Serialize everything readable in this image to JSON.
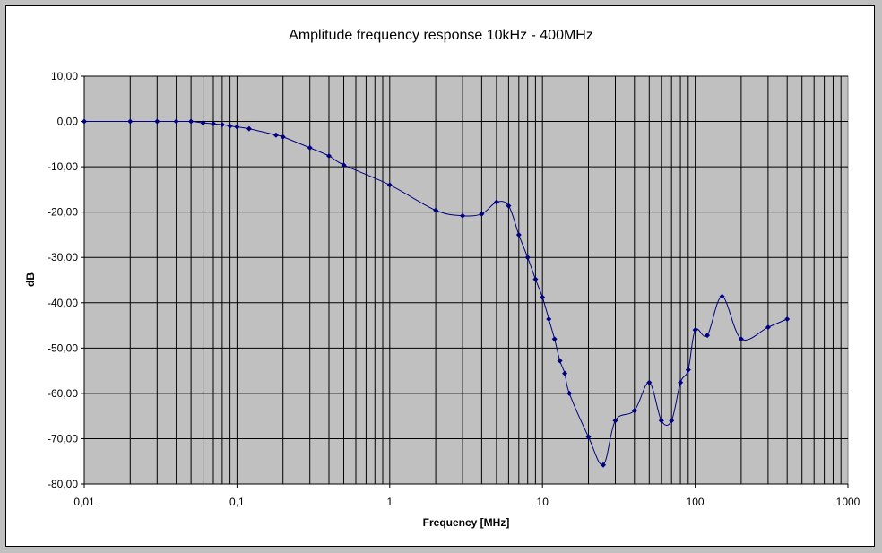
{
  "chart_data": {
    "type": "line",
    "title": "Amplitude frequency response 10kHz - 400MHz",
    "xlabel": "Frequency [MHz]",
    "ylabel": "dB",
    "x_scale": "log",
    "xlim": [
      0.01,
      1000
    ],
    "ylim": [
      -80,
      10
    ],
    "x_ticks": [
      0.01,
      0.1,
      1,
      10,
      100,
      1000
    ],
    "x_tick_labels": [
      "0,01",
      "0,1",
      "1",
      "10",
      "100",
      "1000"
    ],
    "y_ticks": [
      10,
      0,
      -10,
      -20,
      -30,
      -40,
      -50,
      -60,
      -70,
      -80
    ],
    "y_tick_labels": [
      "10,00",
      "0,00",
      "-10,00",
      "-20,00",
      "-30,00",
      "-40,00",
      "-50,00",
      "-60,00",
      "-70,00",
      "-80,00"
    ],
    "grid": true,
    "legend": "none",
    "plot_background": "#c0c0c0",
    "line_color": "#000080",
    "series": [
      {
        "x": [
          0.01,
          0.02,
          0.03,
          0.04,
          0.05,
          0.06,
          0.07,
          0.08,
          0.09,
          0.1,
          0.12,
          0.18,
          0.2,
          0.3,
          0.4,
          0.5,
          1,
          2,
          3,
          4,
          5,
          6,
          7,
          8,
          9,
          10,
          11,
          12,
          13,
          14,
          15,
          20,
          25,
          30,
          40,
          50,
          60,
          70,
          80,
          90,
          100,
          120,
          150,
          200,
          300,
          400
        ],
        "y": [
          0,
          0,
          0,
          0,
          0,
          -0.3,
          -0.5,
          -0.7,
          -1.0,
          -1.2,
          -1.6,
          -3.0,
          -3.4,
          -5.8,
          -7.6,
          -9.6,
          -14.0,
          -19.6,
          -20.8,
          -20.4,
          -17.8,
          -18.6,
          -25.0,
          -30.0,
          -34.8,
          -38.8,
          -43.6,
          -48.0,
          -52.8,
          -55.6,
          -60.0,
          -69.6,
          -75.8,
          -66.0,
          -63.8,
          -57.6,
          -66.0,
          -66.0,
          -57.6,
          -54.8,
          -46.0,
          -47.2,
          -38.6,
          -48.0,
          -45.4,
          -43.6
        ]
      }
    ]
  }
}
